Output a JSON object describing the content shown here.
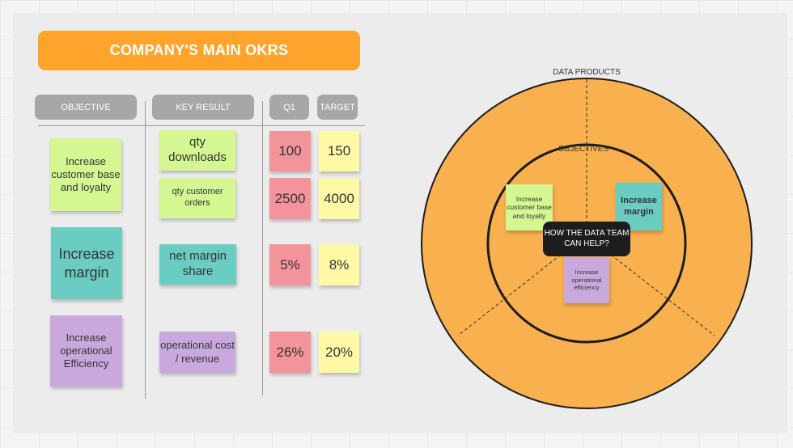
{
  "title": "COMPANY'S MAIN OKRS",
  "headers": {
    "objective": "OBJECTIVE",
    "key_result": "KEY RESULT",
    "q1": "Q1",
    "target": "TARGET"
  },
  "objectives": [
    "Increase customer base and loyalty",
    "Increase margin",
    "Increase operational Efficiency"
  ],
  "key_results": [
    {
      "label": "qty downloads",
      "q1": "100",
      "target": "150"
    },
    {
      "label": "qty customer orders",
      "q1": "2500",
      "target": "4000"
    },
    {
      "label": "net margin share",
      "q1": "5%",
      "target": "8%"
    },
    {
      "label": "operational cost / revenue",
      "q1": "26%",
      "target": "20%"
    }
  ],
  "diagram": {
    "outer_label": "DATA PRODUCTS",
    "inner_label": "OBJECTIVES",
    "center_label": "HOW THE DATA TEAM CAN HELP?",
    "inner_notes": [
      "Increase customer base and loyalty",
      "Increase margin",
      "Increase operational efficiency"
    ]
  },
  "colors": {
    "title_bg": "#fea42c",
    "circle_fill": "#f9b04e",
    "sticky_green": "#d5f792",
    "sticky_teal": "#6bcdc2",
    "sticky_purple": "#c9a9dd",
    "sticky_pink": "#f3949c",
    "sticky_yellow": "#fff9a6"
  }
}
